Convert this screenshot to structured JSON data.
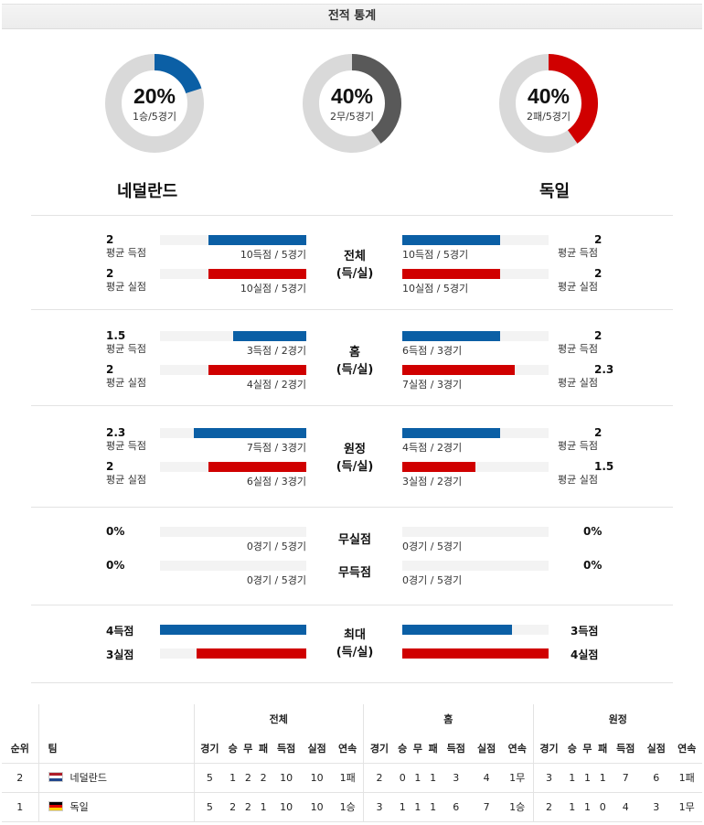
{
  "header": {
    "title": "전적 통계"
  },
  "donuts": [
    {
      "pct_label": "20%",
      "sub": "1승/5경기",
      "value": 0.2,
      "color": "#0b5fa5"
    },
    {
      "pct_label": "40%",
      "sub": "2무/5경기",
      "value": 0.4,
      "color": "#595959"
    },
    {
      "pct_label": "40%",
      "sub": "2패/5경기",
      "value": 0.4,
      "color": "#d00000"
    }
  ],
  "teams": {
    "home": "네덜란드",
    "away": "독일"
  },
  "sections": [
    {
      "label1": "전체",
      "label2": "(득/실)",
      "home": [
        {
          "value": "2",
          "label": "평균 득점",
          "caption": "10득점 / 5경기",
          "fill": 0.67
        },
        {
          "value": "2",
          "label": "평균 실점",
          "caption": "10실점 / 5경기",
          "fill": 0.67
        }
      ],
      "away": [
        {
          "value": "2",
          "label": "평균 득점",
          "caption": "10득점 / 5경기",
          "fill": 0.67
        },
        {
          "value": "2",
          "label": "평균 실점",
          "caption": "10실점 / 5경기",
          "fill": 0.67
        }
      ]
    },
    {
      "label1": "홈",
      "label2": "(득/실)",
      "home": [
        {
          "value": "1.5",
          "label": "평균 득점",
          "caption": "3득점 / 2경기",
          "fill": 0.5
        },
        {
          "value": "2",
          "label": "평균 실점",
          "caption": "4실점 / 2경기",
          "fill": 0.67
        }
      ],
      "away": [
        {
          "value": "2",
          "label": "평균 득점",
          "caption": "6득점 / 3경기",
          "fill": 0.67
        },
        {
          "value": "2.3",
          "label": "평균 실점",
          "caption": "7실점 / 3경기",
          "fill": 0.77
        }
      ]
    },
    {
      "label1": "원정",
      "label2": "(득/실)",
      "home": [
        {
          "value": "2.3",
          "label": "평균 득점",
          "caption": "7득점 / 3경기",
          "fill": 0.77
        },
        {
          "value": "2",
          "label": "평균 실점",
          "caption": "6실점 / 3경기",
          "fill": 0.67
        }
      ],
      "away": [
        {
          "value": "2",
          "label": "평균 득점",
          "caption": "4득점 / 2경기",
          "fill": 0.67
        },
        {
          "value": "1.5",
          "label": "평균 실점",
          "caption": "3실점 / 2경기",
          "fill": 0.5
        }
      ]
    }
  ],
  "clean": {
    "rows": [
      {
        "label": "무실점",
        "home_value": "0%",
        "home_caption": "0경기 / 5경기",
        "away_value": "0%",
        "away_caption": "0경기 / 5경기"
      },
      {
        "label": "무득점",
        "home_value": "0%",
        "home_caption": "0경기 / 5경기",
        "away_value": "0%",
        "away_caption": "0경기 / 5경기"
      }
    ]
  },
  "max": {
    "label1": "최대",
    "label2": "(득/실)",
    "home": [
      {
        "value": "4득점",
        "fill": 1.0
      },
      {
        "value": "3실점",
        "fill": 0.75
      }
    ],
    "away": [
      {
        "value": "3득점",
        "fill": 0.75
      },
      {
        "value": "4실점",
        "fill": 1.0
      }
    ]
  },
  "standings": {
    "groups": [
      "전체",
      "홈",
      "원정"
    ],
    "rank_header": "순위",
    "team_header": "팀",
    "cols": [
      "경기",
      "승",
      "무",
      "패",
      "득점",
      "실점",
      "연속"
    ],
    "rows": [
      {
        "rank": "2",
        "team": "네덜란드",
        "flag": "nl",
        "all": [
          "5",
          "1",
          "2",
          "2",
          "10",
          "10",
          "1패"
        ],
        "home": [
          "2",
          "0",
          "1",
          "1",
          "3",
          "4",
          "1무"
        ],
        "away": [
          "3",
          "1",
          "1",
          "1",
          "7",
          "6",
          "1패"
        ]
      },
      {
        "rank": "1",
        "team": "독일",
        "flag": "de",
        "all": [
          "5",
          "2",
          "2",
          "1",
          "10",
          "10",
          "1승"
        ],
        "home": [
          "3",
          "1",
          "1",
          "1",
          "6",
          "7",
          "1승"
        ],
        "away": [
          "2",
          "1",
          "1",
          "0",
          "4",
          "3",
          "1무"
        ]
      }
    ]
  }
}
